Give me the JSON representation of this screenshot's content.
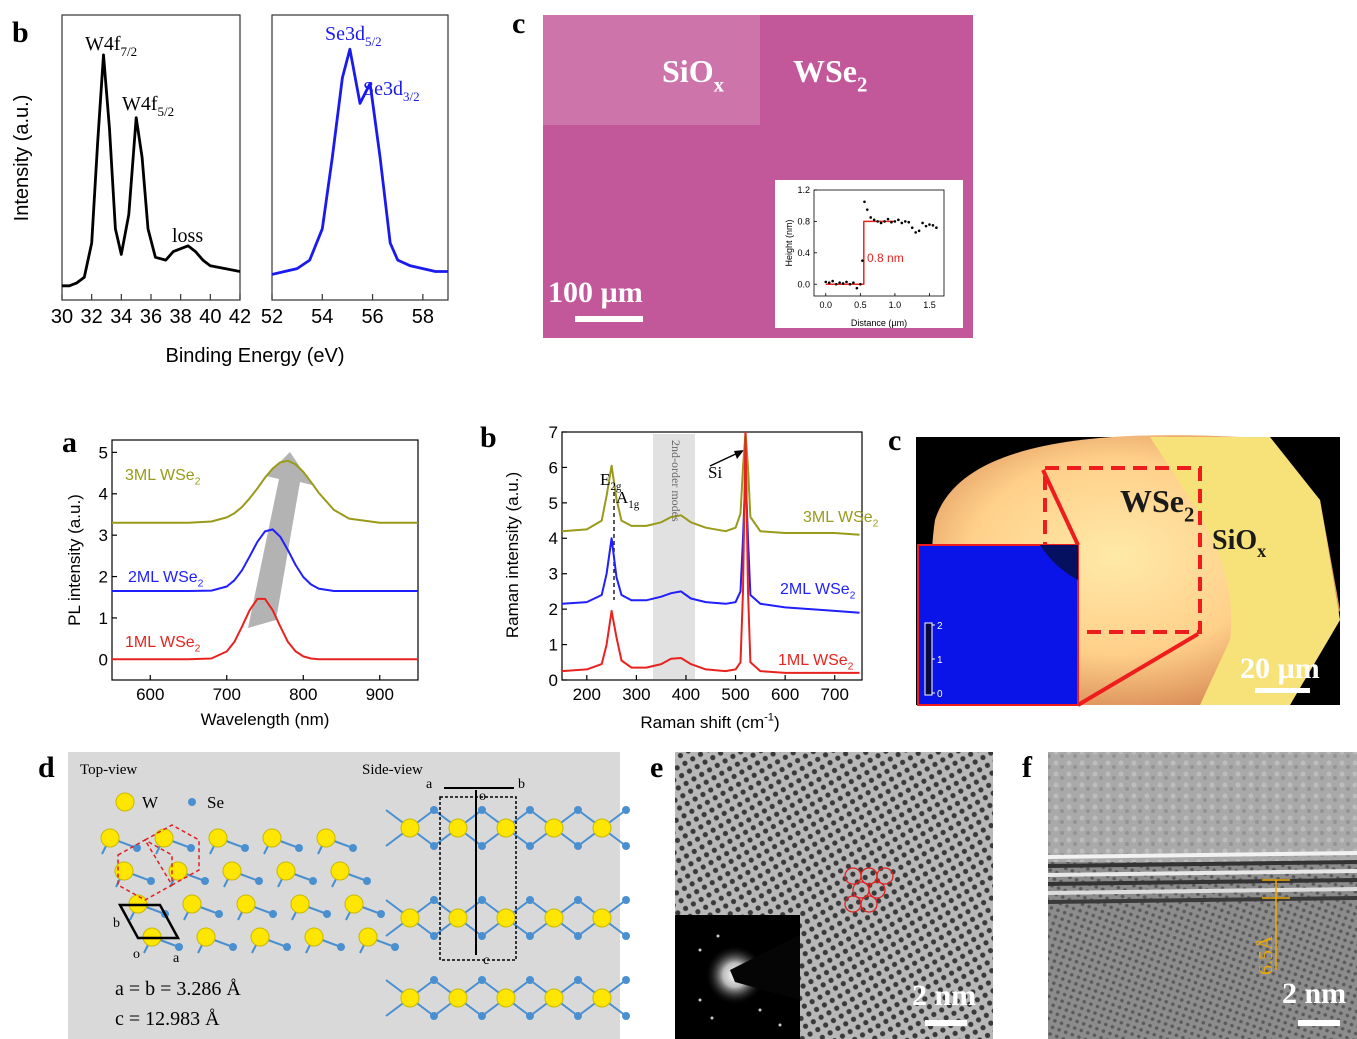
{
  "chart_data": [
    {
      "type": "line",
      "panel": "b",
      "ylabel": "Intensity (a.u.)",
      "xlabel": "Binding Energy (eV)",
      "xlim": [
        30,
        42
      ],
      "ylim": [
        0,
        1
      ],
      "xticks": [
        30,
        32,
        34,
        36,
        38,
        40,
        42
      ],
      "x": [
        30,
        30.5,
        31,
        31.5,
        32,
        32.4,
        32.8,
        33.2,
        33.6,
        34,
        34.5,
        35,
        35.4,
        35.8,
        36.3,
        37,
        37.5,
        38,
        38.5,
        39,
        39.5,
        40,
        41,
        42
      ],
      "series": [
        {
          "color": "#000000",
          "values": [
            0.05,
            0.05,
            0.06,
            0.08,
            0.2,
            0.55,
            0.86,
            0.6,
            0.25,
            0.16,
            0.3,
            0.64,
            0.5,
            0.25,
            0.15,
            0.14,
            0.17,
            0.18,
            0.19,
            0.17,
            0.14,
            0.12,
            0.11,
            0.1
          ]
        }
      ],
      "annotations": [
        {
          "text": "W4f",
          "sub": "7/2"
        },
        {
          "text": "W4f",
          "sub": "5/2"
        },
        {
          "text": "loss"
        }
      ]
    },
    {
      "type": "line",
      "xlim": [
        52,
        59
      ],
      "ylim": [
        0,
        1
      ],
      "xticks": [
        52,
        54,
        56,
        58
      ],
      "x": [
        52,
        52.5,
        53,
        53.5,
        54,
        54.4,
        54.8,
        55.1,
        55.5,
        55.9,
        56.3,
        56.7,
        57,
        57.5,
        58,
        58.5,
        59
      ],
      "series": [
        {
          "color": "#1a1aee",
          "values": [
            0.09,
            0.1,
            0.11,
            0.14,
            0.25,
            0.5,
            0.78,
            0.88,
            0.69,
            0.76,
            0.5,
            0.2,
            0.14,
            0.12,
            0.11,
            0.1,
            0.1
          ]
        }
      ],
      "annotations": [
        {
          "text": "Se3d",
          "sub": "5/2"
        },
        {
          "text": "Se3d",
          "sub": "3/2"
        }
      ]
    },
    {
      "type": "scatter",
      "xlabel": "Distance (µm)",
      "ylabel": "Height (nm)",
      "xlim": [
        -0.17,
        1.71
      ],
      "ylim": [
        -0.15,
        1.2
      ],
      "xticks": [
        {
          "value": 0,
          "label": "0.0"
        },
        0.5,
        {
          "value": 1,
          "label": "1.0"
        },
        1.5
      ],
      "yticks": [
        {
          "value": 0,
          "label": "0.0"
        },
        0.4,
        0.8,
        1.2
      ],
      "x": [
        0,
        0.05,
        0.1,
        0.15,
        0.2,
        0.25,
        0.3,
        0.35,
        0.4,
        0.45,
        0.5,
        0.53,
        0.56,
        0.6,
        0.65,
        0.7,
        0.75,
        0.8,
        0.85,
        0.9,
        0.95,
        1.0,
        1.05,
        1.1,
        1.15,
        1.2,
        1.25,
        1.3,
        1.35,
        1.4,
        1.45,
        1.5,
        1.55,
        1.6
      ],
      "series": [
        {
          "color": "#000000",
          "values": [
            0.03,
            0.02,
            0.04,
            0.0,
            0.02,
            0.01,
            0.03,
            0.0,
            0.02,
            -0.05,
            0.0,
            0.3,
            1.05,
            0.95,
            0.85,
            0.82,
            0.8,
            0.78,
            0.8,
            0.83,
            0.79,
            0.8,
            0.82,
            0.78,
            0.8,
            0.79,
            0.72,
            0.66,
            0.68,
            0.78,
            0.74,
            0.76,
            0.75,
            0.72
          ]
        }
      ],
      "fit": {
        "color": "#e8231f",
        "x": [
          0,
          0.55,
          0.55,
          1.0
        ],
        "values": [
          0,
          0,
          0.8,
          0.8
        ]
      },
      "annotations": [
        {
          "text": "0.8 nm"
        }
      ]
    },
    {
      "type": "line",
      "panel": "a",
      "ylabel": "PL intensity (a.u.)",
      "xlabel": "Wavelength (nm)",
      "xlim": [
        550,
        950
      ],
      "ylim": [
        -0.5,
        5.3
      ],
      "xticks": [
        600,
        700,
        800,
        900
      ],
      "yticks": [
        0,
        1,
        2,
        3,
        4,
        5
      ],
      "x": [
        550,
        600,
        650,
        680,
        700,
        710,
        720,
        730,
        740,
        750,
        760,
        770,
        780,
        790,
        800,
        810,
        820,
        840,
        860,
        900,
        950
      ],
      "series": [
        {
          "name": "3ML WSe",
          "sub": "2",
          "color": "#9a9a1a",
          "values": [
            3.3,
            3.3,
            3.3,
            3.33,
            3.43,
            3.53,
            3.68,
            3.89,
            4.13,
            4.39,
            4.61,
            4.76,
            4.8,
            4.71,
            4.53,
            4.29,
            4.03,
            3.61,
            3.4,
            3.3,
            3.3
          ]
        },
        {
          "name": "2ML WSe",
          "sub": "2",
          "color": "#1f1fff",
          "values": [
            1.65,
            1.65,
            1.65,
            1.66,
            1.76,
            1.91,
            2.15,
            2.49,
            2.84,
            3.09,
            3.14,
            2.96,
            2.64,
            2.28,
            1.99,
            1.81,
            1.71,
            1.65,
            1.65,
            1.65,
            1.65
          ]
        },
        {
          "name": "1ML WSe",
          "sub": "2",
          "color": "#e8231f",
          "values": [
            0,
            0,
            0,
            0.02,
            0.19,
            0.42,
            0.79,
            1.19,
            1.46,
            1.46,
            1.19,
            0.79,
            0.42,
            0.19,
            0.07,
            0.02,
            0,
            0,
            0,
            0,
            0
          ]
        }
      ]
    },
    {
      "type": "line",
      "panel": "b",
      "ylabel": "Raman intensity (a.u.)",
      "xlabel": {
        "text": "Raman shift (cm",
        "sup": "-1",
        "tail": ")"
      },
      "xlim": [
        150,
        755
      ],
      "ylim": [
        0,
        7
      ],
      "xticks": [
        200,
        300,
        400,
        500,
        600,
        700
      ],
      "yticks": [
        0,
        1,
        2,
        3,
        4,
        5,
        6,
        7
      ],
      "x": [
        150,
        200,
        230,
        240,
        250,
        260,
        270,
        290,
        320,
        350,
        370,
        390,
        410,
        440,
        480,
        500,
        510,
        515,
        520,
        525,
        530,
        550,
        600,
        650,
        700,
        750
      ],
      "series": [
        {
          "name": "3ML WSe",
          "sub": "2",
          "color": "#9a9a1a",
          "values": [
            4.2,
            4.25,
            4.5,
            5.2,
            6.05,
            5.1,
            4.5,
            4.35,
            4.35,
            4.45,
            4.6,
            4.65,
            4.45,
            4.3,
            4.2,
            4.3,
            4.7,
            6,
            7,
            6,
            4.6,
            4.2,
            4.15,
            4.15,
            4.15,
            4.1
          ]
        },
        {
          "name": "2ML WSe",
          "sub": "2",
          "color": "#1f1fff",
          "values": [
            2.15,
            2.2,
            2.4,
            3.0,
            4.0,
            2.9,
            2.4,
            2.25,
            2.25,
            2.35,
            2.45,
            2.5,
            2.3,
            2.2,
            2.15,
            2.2,
            2.5,
            4,
            5.85,
            4,
            2.4,
            2.15,
            2.05,
            2.0,
            1.95,
            1.9
          ]
        },
        {
          "name": "1ML WSe",
          "sub": "2",
          "color": "#e8231f",
          "values": [
            0.25,
            0.3,
            0.45,
            1.0,
            1.95,
            1.2,
            0.55,
            0.35,
            0.35,
            0.45,
            0.6,
            0.62,
            0.45,
            0.3,
            0.25,
            0.3,
            0.5,
            2.5,
            7,
            2.5,
            0.5,
            0.25,
            0.2,
            0.2,
            0.2,
            0.2
          ]
        }
      ],
      "annotations": [
        {
          "text": "E",
          "sub": "2g"
        },
        {
          "text": "A",
          "sub": "1g"
        },
        {
          "text": "Si"
        },
        {
          "text": "2nd-order modes"
        }
      ]
    }
  ],
  "images": {
    "optical": {
      "panel": "c",
      "labels": [
        {
          "text": "SiO",
          "sub": "x"
        },
        {
          "text": "WSe",
          "sub": "2"
        }
      ],
      "scalebar": "100 µm"
    },
    "pl_map": {
      "panel": "c",
      "labels": [
        {
          "text": "WSe",
          "sub": "2"
        },
        {
          "text": "SiO",
          "sub": "x"
        }
      ],
      "scalebar": "20 µm",
      "colorbar_ticks": [
        0,
        1,
        2
      ]
    },
    "structure": {
      "panel": "d",
      "top_view": "Top-view",
      "side_view": "Side-view",
      "legend": [
        "W",
        "Se"
      ],
      "lattice_labels": [
        "b",
        "o",
        "a",
        "a",
        "b",
        "o",
        "c"
      ],
      "params": [
        "a = b = 3.286 Å",
        "c = 12.983 Å"
      ]
    },
    "hrtem": {
      "panel": "e",
      "scalebar": "2 nm"
    },
    "cross_section": {
      "panel": "f",
      "spacing": "6.5Å",
      "scalebar": "2 nm"
    }
  }
}
